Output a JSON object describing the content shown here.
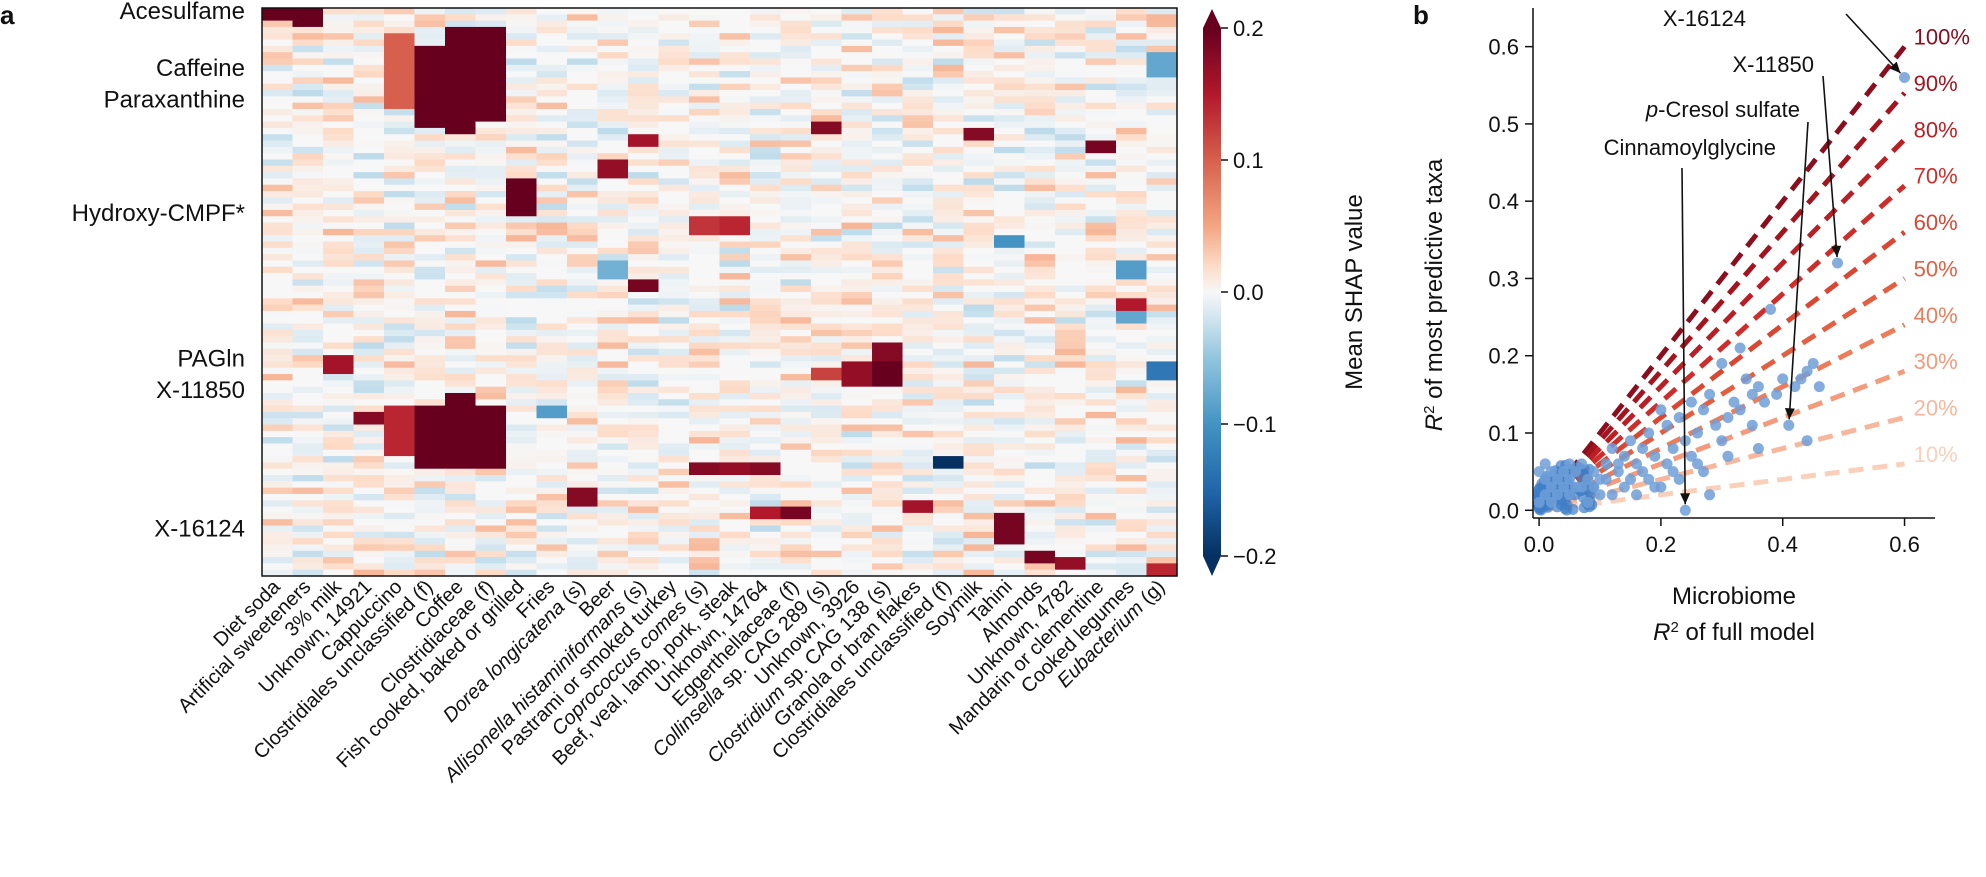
{
  "panels": {
    "a": {
      "letter": "a"
    },
    "b": {
      "letter": "b"
    }
  },
  "colors": {
    "deep_red": "#67001f",
    "mid_red": "#d6604d",
    "light_red": "#fddbc7",
    "white": "#f7f7f7",
    "light_blue": "#d1e5f0",
    "mid_blue": "#4393c3",
    "deep_blue": "#053061",
    "scatter_point": "#6f9fd8",
    "scatter_dense": "#3f7fc7"
  },
  "chart_data": [
    {
      "type": "heatmap",
      "title": "",
      "colorbar_label": "Mean SHAP value",
      "colorbar_ticks": [
        0.2,
        0.1,
        0.0,
        -0.1,
        -0.2
      ],
      "colorbar_tick_labels": [
        "0.2",
        "0.1",
        "0.0",
        "−0.1",
        "−0.2"
      ],
      "value_range": [
        -0.2,
        0.2
      ],
      "num_rows": 90,
      "row_labels": [
        {
          "label": "Acesulfame",
          "row": 0
        },
        {
          "label": "Caffeine",
          "row": 9
        },
        {
          "label": "Paraxanthine",
          "row": 14
        },
        {
          "label": "Hydroxy-CMPF*",
          "row": 32
        },
        {
          "label": "PAGln",
          "row": 55
        },
        {
          "label": "X-11850",
          "row": 60
        },
        {
          "label": "X-16124",
          "row": 82
        }
      ],
      "columns": [
        {
          "label": "Diet soda",
          "italic_prefix": "",
          "rest": "Diet soda"
        },
        {
          "label": "Artificial sweeteners",
          "italic_prefix": "",
          "rest": "Artificial sweeteners"
        },
        {
          "label": "3% milk",
          "italic_prefix": "",
          "rest": "3% milk"
        },
        {
          "label": "Unknown, 14921",
          "italic_prefix": "",
          "rest": "Unknown, 14921"
        },
        {
          "label": "Cappuccino",
          "italic_prefix": "",
          "rest": "Cappuccino"
        },
        {
          "label": "Clostridiales unclassified (f)",
          "italic_prefix": "",
          "rest": "Clostridiales unclassified (f)"
        },
        {
          "label": "Coffee",
          "italic_prefix": "",
          "rest": "Coffee"
        },
        {
          "label": "Clostridiaceae (f)",
          "italic_prefix": "",
          "rest": "Clostridiaceae (f)"
        },
        {
          "label": "Fish cooked, baked or grilled",
          "italic_prefix": "",
          "rest": "Fish cooked, baked or grilled"
        },
        {
          "label": "Fries",
          "italic_prefix": "",
          "rest": "Fries"
        },
        {
          "label": "Dorea longicatena (s)",
          "italic_prefix": "Dorea longicatena",
          "rest": " (s)"
        },
        {
          "label": "Beer",
          "italic_prefix": "",
          "rest": "Beer"
        },
        {
          "label": "Allisonella histaminiformans (s)",
          "italic_prefix": "Allisonella histaminiformans",
          "rest": " (s)"
        },
        {
          "label": "Pastrami or smoked turkey",
          "italic_prefix": "",
          "rest": "Pastrami or smoked turkey"
        },
        {
          "label": "Coprococcus comes (s)",
          "italic_prefix": "Coprococcus comes",
          "rest": " (s)"
        },
        {
          "label": "Beef, veal, lamb, pork, steak",
          "italic_prefix": "",
          "rest": "Beef, veal, lamb, pork, steak"
        },
        {
          "label": "Unknown, 14764",
          "italic_prefix": "",
          "rest": "Unknown, 14764"
        },
        {
          "label": "Eggerthellaceae (f)",
          "italic_prefix": "",
          "rest": "Eggerthellaceae (f)"
        },
        {
          "label": "Collinsella sp. CAG 289 (s)",
          "italic_prefix": "Collinsella",
          "rest": " sp. CAG 289 (s)"
        },
        {
          "label": "Unknown, 3926",
          "italic_prefix": "",
          "rest": "Unknown, 3926"
        },
        {
          "label": "Clostridium sp. CAG 138 (s)",
          "italic_prefix": "Clostridium",
          "rest": " sp. CAG 138 (s)"
        },
        {
          "label": "Granola or bran flakes",
          "italic_prefix": "",
          "rest": "Granola or bran flakes"
        },
        {
          "label": "Clostridiales unclassified (f)",
          "italic_prefix": "",
          "rest": "Clostridiales unclassified (f)"
        },
        {
          "label": "Soymilk",
          "italic_prefix": "",
          "rest": "Soymilk"
        },
        {
          "label": "Tahini",
          "italic_prefix": "",
          "rest": "Tahini"
        },
        {
          "label": "Almonds",
          "italic_prefix": "",
          "rest": "Almonds"
        },
        {
          "label": "Unknown, 4782",
          "italic_prefix": "",
          "rest": "Unknown, 4782"
        },
        {
          "label": "Mandarin or clementine",
          "italic_prefix": "",
          "rest": "Mandarin or clementine"
        },
        {
          "label": "Cooked legumes",
          "italic_prefix": "",
          "rest": "Cooked legumes"
        },
        {
          "label": "Eubacterium (g)",
          "italic_prefix": "Eubacterium",
          "rest": " (g)"
        }
      ],
      "strong_cells": [
        {
          "col": 0,
          "rows": [
            0,
            1
          ],
          "value": 0.2
        },
        {
          "col": 1,
          "rows": [
            0,
            2
          ],
          "value": 0.2
        },
        {
          "col": 5,
          "rows": [
            6,
            18
          ],
          "value": 0.2
        },
        {
          "col": 6,
          "rows": [
            3,
            19
          ],
          "value": 0.2
        },
        {
          "col": 7,
          "rows": [
            3,
            17
          ],
          "value": 0.2
        },
        {
          "col": 5,
          "rows": [
            63,
            72
          ],
          "value": 0.2
        },
        {
          "col": 6,
          "rows": [
            61,
            72
          ],
          "value": 0.2
        },
        {
          "col": 7,
          "rows": [
            63,
            72
          ],
          "value": 0.2
        },
        {
          "col": 4,
          "rows": [
            63,
            70
          ],
          "value": 0.14
        },
        {
          "col": 8,
          "rows": [
            27,
            32
          ],
          "value": 0.2
        },
        {
          "col": 4,
          "rows": [
            4,
            15
          ],
          "value": 0.1
        },
        {
          "col": 20,
          "rows": [
            53,
            55
          ],
          "value": 0.18
        },
        {
          "col": 19,
          "rows": [
            56,
            59
          ],
          "value": 0.17
        },
        {
          "col": 20,
          "rows": [
            56,
            59
          ],
          "value": 0.2
        },
        {
          "col": 18,
          "rows": [
            57,
            58
          ],
          "value": 0.12
        },
        {
          "col": 24,
          "rows": [
            80,
            84
          ],
          "value": 0.19
        },
        {
          "col": 14,
          "rows": [
            72,
            73
          ],
          "value": 0.18
        },
        {
          "col": 15,
          "rows": [
            72,
            73
          ],
          "value": 0.17
        },
        {
          "col": 16,
          "rows": [
            72,
            73
          ],
          "value": 0.18
        },
        {
          "col": 17,
          "rows": [
            79,
            80
          ],
          "value": 0.19
        },
        {
          "col": 16,
          "rows": [
            79,
            80
          ],
          "value": 0.15
        },
        {
          "col": 10,
          "rows": [
            76,
            78
          ],
          "value": 0.18
        },
        {
          "col": 12,
          "rows": [
            20,
            21
          ],
          "value": 0.16
        },
        {
          "col": 11,
          "rows": [
            24,
            26
          ],
          "value": 0.17
        },
        {
          "col": 18,
          "rows": [
            18,
            19
          ],
          "value": 0.18
        },
        {
          "col": 23,
          "rows": [
            19,
            20
          ],
          "value": 0.18
        },
        {
          "col": 27,
          "rows": [
            21,
            22
          ],
          "value": 0.19
        },
        {
          "col": 12,
          "rows": [
            43,
            44
          ],
          "value": 0.19
        },
        {
          "col": 14,
          "rows": [
            33,
            35
          ],
          "value": 0.13
        },
        {
          "col": 15,
          "rows": [
            33,
            35
          ],
          "value": 0.14
        },
        {
          "col": 25,
          "rows": [
            86,
            87
          ],
          "value": 0.19
        },
        {
          "col": 26,
          "rows": [
            87,
            88
          ],
          "value": 0.17
        },
        {
          "col": 21,
          "rows": [
            78,
            79
          ],
          "value": 0.16
        },
        {
          "col": 3,
          "rows": [
            64,
            65
          ],
          "value": 0.18
        },
        {
          "col": 2,
          "rows": [
            55,
            57
          ],
          "value": 0.16
        },
        {
          "col": 22,
          "rows": [
            71,
            72
          ],
          "value": -0.2
        },
        {
          "col": 29,
          "rows": [
            56,
            58
          ],
          "value": -0.13
        },
        {
          "col": 29,
          "rows": [
            7,
            10
          ],
          "value": -0.08
        },
        {
          "col": 11,
          "rows": [
            40,
            42
          ],
          "value": -0.07
        },
        {
          "col": 24,
          "rows": [
            36,
            37
          ],
          "value": -0.1
        },
        {
          "col": 9,
          "rows": [
            63,
            64
          ],
          "value": -0.09
        },
        {
          "col": 28,
          "rows": [
            40,
            42
          ],
          "value": -0.09
        },
        {
          "col": 28,
          "rows": [
            48,
            49
          ],
          "value": -0.08
        },
        {
          "col": 29,
          "rows": [
            88,
            89
          ],
          "value": 0.14
        },
        {
          "col": 28,
          "rows": [
            46,
            47
          ],
          "value": 0.15
        }
      ]
    },
    {
      "type": "scatter",
      "title": "",
      "xlabel_line1": "Microbiome",
      "xlabel_line2_prefix": "R",
      "xlabel_line2_sup": "2",
      "xlabel_line2_rest": " of full model",
      "ylabel_prefix": "R",
      "ylabel_sup": "2",
      "ylabel_rest": " of most predictive taxa",
      "xlim": [
        -0.01,
        0.65
      ],
      "ylim": [
        -0.01,
        0.65
      ],
      "xticks": [
        0.0,
        0.2,
        0.4,
        0.6
      ],
      "xtick_labels": [
        "0.0",
        "0.2",
        "0.4",
        "0.6"
      ],
      "yticks": [
        0.0,
        0.1,
        0.2,
        0.3,
        0.4,
        0.5,
        0.6
      ],
      "ytick_labels": [
        "0.0",
        "0.1",
        "0.2",
        "0.3",
        "0.4",
        "0.5",
        "0.6"
      ],
      "reference_lines": [
        {
          "label": "100%",
          "slope": 1.0,
          "color": "#8b0e1e"
        },
        {
          "label": "90%",
          "slope": 0.9,
          "color": "#a3141f"
        },
        {
          "label": "80%",
          "slope": 0.8,
          "color": "#b91f25"
        },
        {
          "label": "70%",
          "slope": 0.7,
          "color": "#cc2f2b"
        },
        {
          "label": "60%",
          "slope": 0.6,
          "color": "#d94632"
        },
        {
          "label": "50%",
          "slope": 0.5,
          "color": "#e35f41"
        },
        {
          "label": "40%",
          "slope": 0.4,
          "color": "#ec7d5c"
        },
        {
          "label": "30%",
          "slope": 0.3,
          "color": "#f39b7c"
        },
        {
          "label": "20%",
          "slope": 0.2,
          "color": "#f7b79c"
        },
        {
          "label": "10%",
          "slope": 0.1,
          "color": "#fad0ba"
        }
      ],
      "points": [
        [
          0.6,
          0.56
        ],
        [
          0.49,
          0.32
        ],
        [
          0.41,
          0.11
        ],
        [
          0.24,
          0.0
        ],
        [
          0.45,
          0.19
        ],
        [
          0.43,
          0.17
        ],
        [
          0.44,
          0.18
        ],
        [
          0.46,
          0.16
        ],
        [
          0.42,
          0.16
        ],
        [
          0.4,
          0.17
        ],
        [
          0.39,
          0.15
        ],
        [
          0.38,
          0.26
        ],
        [
          0.37,
          0.14
        ],
        [
          0.36,
          0.16
        ],
        [
          0.35,
          0.15
        ],
        [
          0.34,
          0.17
        ],
        [
          0.33,
          0.21
        ],
        [
          0.33,
          0.13
        ],
        [
          0.32,
          0.14
        ],
        [
          0.31,
          0.12
        ],
        [
          0.3,
          0.19
        ],
        [
          0.29,
          0.11
        ],
        [
          0.28,
          0.15
        ],
        [
          0.27,
          0.13
        ],
        [
          0.26,
          0.1
        ],
        [
          0.25,
          0.14
        ],
        [
          0.24,
          0.09
        ],
        [
          0.23,
          0.12
        ],
        [
          0.22,
          0.08
        ],
        [
          0.21,
          0.11
        ],
        [
          0.2,
          0.13
        ],
        [
          0.19,
          0.07
        ],
        [
          0.18,
          0.1
        ],
        [
          0.17,
          0.08
        ],
        [
          0.16,
          0.06
        ],
        [
          0.15,
          0.09
        ],
        [
          0.14,
          0.07
        ],
        [
          0.13,
          0.05
        ],
        [
          0.12,
          0.08
        ],
        [
          0.11,
          0.06
        ],
        [
          0.1,
          0.04
        ],
        [
          0.09,
          0.05
        ],
        [
          0.08,
          0.04
        ],
        [
          0.07,
          0.06
        ],
        [
          0.06,
          0.03
        ],
        [
          0.05,
          0.04
        ],
        [
          0.44,
          0.09
        ],
        [
          0.36,
          0.08
        ],
        [
          0.3,
          0.09
        ],
        [
          0.26,
          0.06
        ],
        [
          0.22,
          0.05
        ],
        [
          0.18,
          0.04
        ],
        [
          0.14,
          0.03
        ],
        [
          0.1,
          0.02
        ],
        [
          0.05,
          0.02
        ],
        [
          0.02,
          0.01
        ],
        [
          0.03,
          0.02
        ],
        [
          0.04,
          0.03
        ],
        [
          0.28,
          0.02
        ],
        [
          0.2,
          0.03
        ],
        [
          0.16,
          0.02
        ],
        [
          0.12,
          0.02
        ],
        [
          0.08,
          0.01
        ],
        [
          0.35,
          0.11
        ],
        [
          0.31,
          0.07
        ],
        [
          0.27,
          0.05
        ],
        [
          0.23,
          0.04
        ],
        [
          0.19,
          0.03
        ],
        [
          0.15,
          0.04
        ],
        [
          0.01,
          0.02
        ],
        [
          0.0,
          0.01
        ],
        [
          0.01,
          0.04
        ],
        [
          0.02,
          0.05
        ],
        [
          0.0,
          0.05
        ],
        [
          0.01,
          0.06
        ],
        [
          0.02,
          0.03
        ],
        [
          0.03,
          0.04
        ],
        [
          0.04,
          0.05
        ],
        [
          0.05,
          0.06
        ],
        [
          0.06,
          0.05
        ],
        [
          0.07,
          0.03
        ],
        [
          0.09,
          0.03
        ],
        [
          0.11,
          0.04
        ],
        [
          0.13,
          0.06
        ],
        [
          0.17,
          0.05
        ],
        [
          0.21,
          0.06
        ],
        [
          0.25,
          0.07
        ]
      ],
      "annotations": [
        {
          "label": "X-16124",
          "italic": "",
          "text": "X-16124",
          "target": [
            0.6,
            0.56
          ]
        },
        {
          "label": "X-11850",
          "italic": "",
          "text": "X-11850",
          "target": [
            0.49,
            0.32
          ]
        },
        {
          "label": "p-Cresol sulfate",
          "italic": "p",
          "text": "-Cresol sulfate",
          "target": [
            0.41,
            0.11
          ]
        },
        {
          "label": "Cinnamoylglycine",
          "italic": "",
          "text": "Cinnamoylglycine",
          "target": [
            0.24,
            0.0
          ]
        }
      ]
    }
  ]
}
